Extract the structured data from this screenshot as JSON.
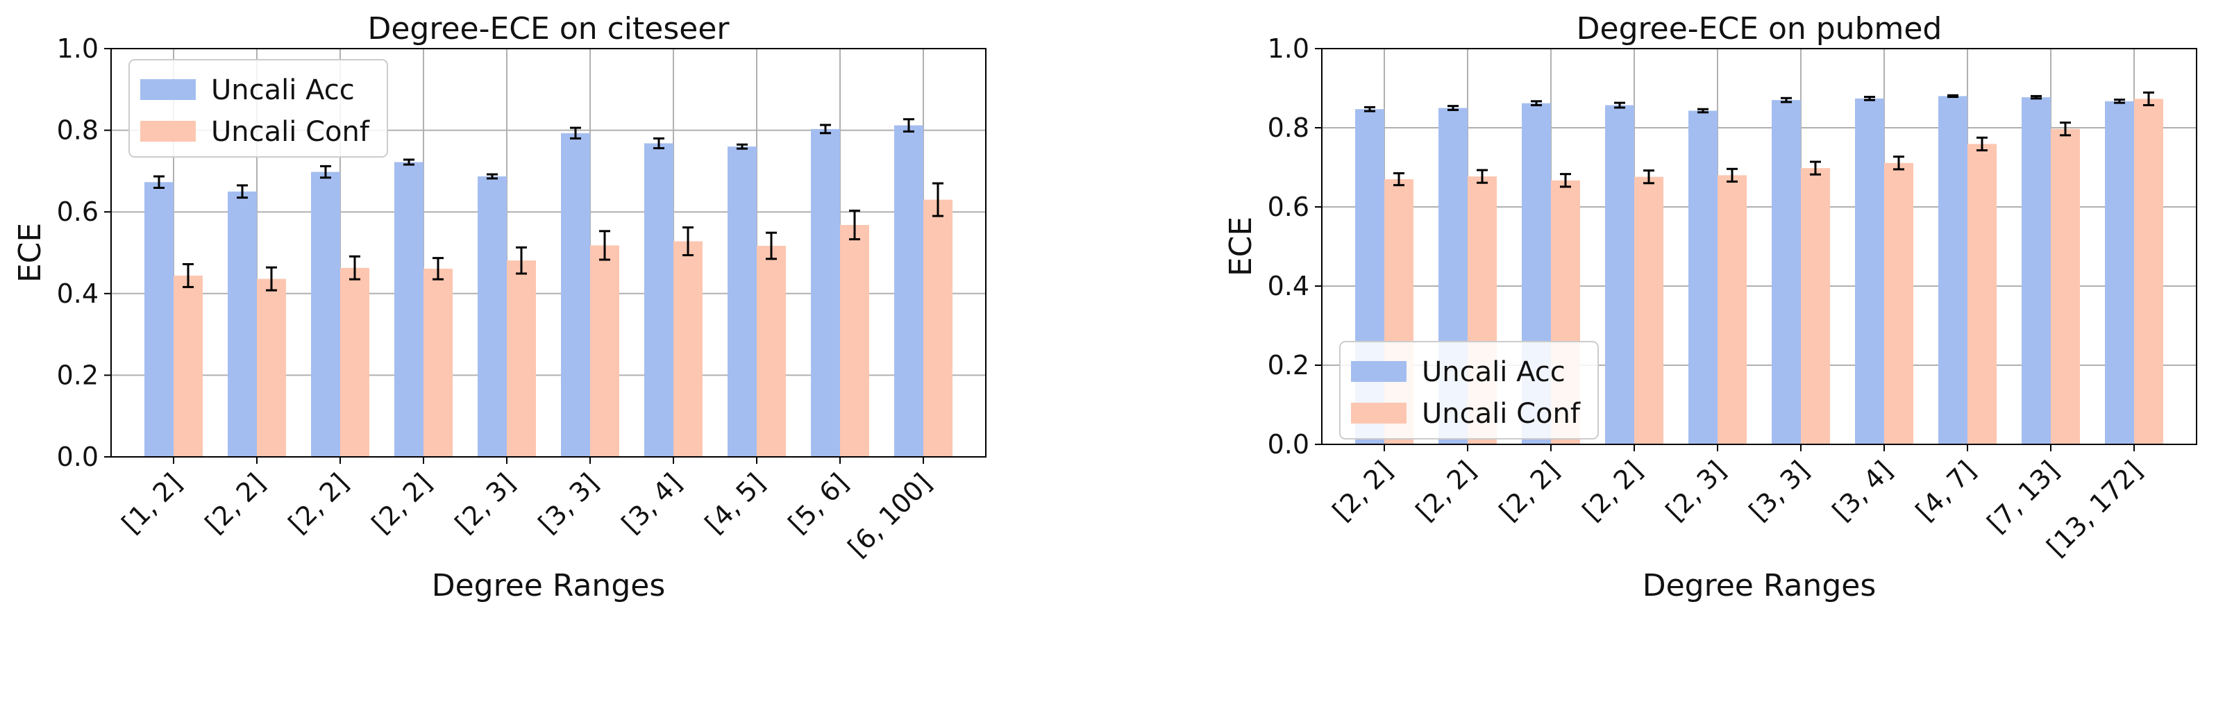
{
  "colors": {
    "acc": "#a4bdf0",
    "conf": "#fdc6b0",
    "grid": "#b0b0b0",
    "axis": "#000000",
    "errorbar": "#000000"
  },
  "chart_data": [
    {
      "type": "bar",
      "title": "Degree-ECE on citeseer",
      "xlabel": "Degree Ranges",
      "ylabel": "ECE",
      "ylim": [
        0,
        1.0
      ],
      "yticks": [
        "0.0",
        "0.2",
        "0.4",
        "0.6",
        "0.8",
        "1.0"
      ],
      "grid": true,
      "legend_position": "top-left",
      "categories": [
        "[1, 2]",
        "[2, 2]",
        "[2, 2]",
        "[2, 2]",
        "[2, 3]",
        "[3, 3]",
        "[3, 4]",
        "[4, 5]",
        "[5, 6]",
        "[6, 100]"
      ],
      "series": [
        {
          "name": "Uncali Acc",
          "color_key": "acc",
          "values": [
            0.673,
            0.65,
            0.698,
            0.722,
            0.687,
            0.793,
            0.768,
            0.76,
            0.803,
            0.812
          ],
          "errors": [
            0.014,
            0.015,
            0.014,
            0.006,
            0.005,
            0.013,
            0.012,
            0.005,
            0.01,
            0.015
          ]
        },
        {
          "name": "Uncali Conf",
          "color_key": "conf",
          "values": [
            0.444,
            0.436,
            0.463,
            0.461,
            0.481,
            0.518,
            0.528,
            0.517,
            0.568,
            0.63
          ],
          "errors": [
            0.028,
            0.028,
            0.028,
            0.026,
            0.032,
            0.035,
            0.034,
            0.032,
            0.035,
            0.04
          ]
        }
      ]
    },
    {
      "type": "bar",
      "title": "Degree-ECE on pubmed",
      "xlabel": "Degree Ranges",
      "ylabel": "ECE",
      "ylim": [
        0,
        1.0
      ],
      "yticks": [
        "0.0",
        "0.2",
        "0.4",
        "0.6",
        "0.8",
        "1.0"
      ],
      "grid": true,
      "legend_position": "bottom-left",
      "categories": [
        "[2, 2]",
        "[2, 2]",
        "[2, 2]",
        "[2, 2]",
        "[2, 3]",
        "[3, 3]",
        "[3, 4]",
        "[4, 7]",
        "[7, 13]",
        "[13, 172]"
      ],
      "series": [
        {
          "name": "Uncali Acc",
          "color_key": "acc",
          "values": [
            0.847,
            0.85,
            0.862,
            0.857,
            0.843,
            0.87,
            0.874,
            0.88,
            0.877,
            0.867
          ],
          "errors": [
            0.005,
            0.005,
            0.005,
            0.006,
            0.004,
            0.005,
            0.004,
            0.002,
            0.003,
            0.004
          ]
        },
        {
          "name": "Uncali Conf",
          "color_key": "conf",
          "values": [
            0.67,
            0.677,
            0.667,
            0.676,
            0.68,
            0.698,
            0.711,
            0.759,
            0.797,
            0.873
          ],
          "errors": [
            0.015,
            0.016,
            0.016,
            0.016,
            0.016,
            0.016,
            0.016,
            0.016,
            0.016,
            0.016
          ]
        }
      ]
    }
  ]
}
